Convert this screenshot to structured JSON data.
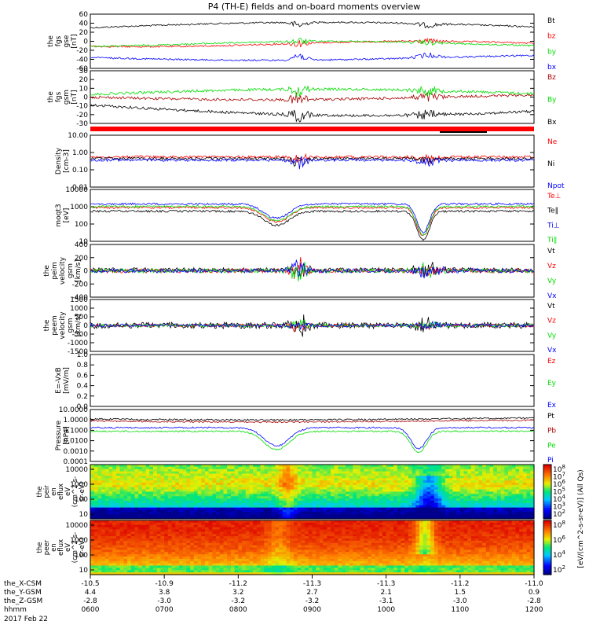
{
  "title": "P4 (TH-E) fields and on-board moments overview",
  "date_label": "2017 Feb 22",
  "colors": {
    "black": "#000000",
    "red": "#ff0000",
    "green": "#00dd00",
    "blue": "#0000ff",
    "darkred": "#aa0000"
  },
  "chart_data": [
    {
      "type": "line",
      "id": "fgs-gse",
      "ylabel": [
        "the",
        "fgs",
        "gse",
        "[nT]"
      ],
      "yticks": [
        "60",
        "40",
        "20",
        "0",
        "-20",
        "-40",
        "-60"
      ],
      "ylim": [
        -60,
        60
      ],
      "series": [
        {
          "name": "Bt",
          "color": "#000000"
        },
        {
          "name": "bz",
          "color": "#ff0000"
        },
        {
          "name": "by",
          "color": "#00dd00"
        },
        {
          "name": "bx",
          "color": "#0000ff"
        }
      ]
    },
    {
      "type": "line",
      "id": "fgs-gsm",
      "ylabel": [
        "the",
        "fgs",
        "gsm",
        "[nT]"
      ],
      "yticks": [
        "30",
        "20",
        "10",
        "0",
        "-10",
        "-20",
        "-30"
      ],
      "ylim": [
        -30,
        30
      ],
      "series": [
        {
          "name": "Bz",
          "color": "#aa0000"
        },
        {
          "name": "By",
          "color": "#00dd00"
        },
        {
          "name": "Bx",
          "color": "#000000"
        }
      ]
    },
    {
      "type": "line",
      "id": "density",
      "ylabel": [
        "Density",
        "[cm-3]"
      ],
      "yticks": [
        "10.00",
        "1.00",
        "0.10",
        "0.01"
      ],
      "log": true,
      "series": [
        {
          "name": "Ne",
          "color": "#ff0000"
        },
        {
          "name": "Ni",
          "color": "#000000"
        },
        {
          "name": "Npot",
          "color": "#0000ff"
        }
      ]
    },
    {
      "type": "line",
      "id": "temperature",
      "ylabel": [
        "moqt3",
        "[eV]"
      ],
      "yticks": [
        "10000",
        "1000",
        "100",
        "10"
      ],
      "log": true,
      "series": [
        {
          "name": "Te⊥",
          "color": "#ff0000"
        },
        {
          "name": "Te∥",
          "color": "#000000"
        },
        {
          "name": "Ti⊥",
          "color": "#0000ff"
        },
        {
          "name": "Ti∥",
          "color": "#00dd00"
        }
      ]
    },
    {
      "type": "line",
      "id": "peim-velocity",
      "ylabel": [
        "the",
        "peim",
        "velocity",
        "gsm",
        "[km/s]"
      ],
      "yticks": [
        "400",
        "200",
        "0",
        "-200",
        "-400"
      ],
      "ylim": [
        -400,
        400
      ],
      "series": [
        {
          "name": "Vt",
          "color": "#000000"
        },
        {
          "name": "Vz",
          "color": "#ff0000"
        },
        {
          "name": "Vy",
          "color": "#00dd00"
        },
        {
          "name": "Vx",
          "color": "#0000ff"
        }
      ]
    },
    {
      "type": "line",
      "id": "peem-velocity",
      "ylabel": [
        "the",
        "peem",
        "velocity",
        "gsm",
        "[km/s]"
      ],
      "yticks": [
        "1500",
        "1000",
        "500",
        "0",
        "-500",
        "-1000",
        "-1500"
      ],
      "ylim": [
        -1500,
        1500
      ],
      "series": [
        {
          "name": "Vt",
          "color": "#000000"
        },
        {
          "name": "Vz",
          "color": "#ff0000"
        },
        {
          "name": "Vy",
          "color": "#00dd00"
        },
        {
          "name": "Vx",
          "color": "#0000ff"
        }
      ]
    },
    {
      "type": "line",
      "id": "efield",
      "ylabel": [
        "E=-VxB",
        "[mV/m]"
      ],
      "yticks": [
        "1.0",
        "0.8",
        "0.6",
        "0.4",
        "0.2",
        "0.0"
      ],
      "ylim": [
        0,
        1
      ],
      "series": [
        {
          "name": "Ez",
          "color": "#ff0000"
        },
        {
          "name": "Ey",
          "color": "#00dd00"
        },
        {
          "name": "Ex",
          "color": "#0000ff"
        }
      ]
    },
    {
      "type": "line",
      "id": "pressure",
      "ylabel": [
        "Pressure",
        "[nPa]"
      ],
      "yticks": [
        "10.0000",
        "1.0000",
        "0.1000",
        "0.0100",
        "0.0010",
        "0.0001"
      ],
      "log": true,
      "series": [
        {
          "name": "Pt",
          "color": "#000000"
        },
        {
          "name": "Pb",
          "color": "#aa0000"
        },
        {
          "name": "Pe",
          "color": "#00dd00"
        },
        {
          "name": "Pi",
          "color": "#0000ff"
        }
      ]
    },
    {
      "type": "heatmap",
      "id": "peir",
      "ylabel": [
        "the",
        "peir",
        "en",
        "eflux",
        "eV",
        "(cm^2-s-",
        "sr-eV)"
      ],
      "yticks": [
        "10000",
        "1000",
        "100",
        "10"
      ],
      "log": true
    },
    {
      "type": "heatmap",
      "id": "peer",
      "ylabel": [
        "the",
        "peer",
        "en",
        "eflux",
        "eV",
        "(cm^2-s-",
        "sr-eV)"
      ],
      "yticks": [
        "10000",
        "1000",
        "100",
        "10"
      ],
      "log": true
    }
  ],
  "colorbar": {
    "label": "[eV/(cm^2-s-sr-eV)] (All Qs)",
    "ticks_top": [
      "10^8",
      "10^7",
      "10^6",
      "10^5",
      "10^4",
      "10^3",
      "10^2"
    ],
    "ticks_bottom": [
      "10^8",
      "10^6",
      "10^4",
      "10^2"
    ]
  },
  "xaxis": {
    "rows": [
      {
        "label": "the_X-CSM",
        "values": [
          "-10.5",
          "-10.9",
          "-11.2",
          "-11.3",
          "-11.3",
          "-11.2",
          "-11.0"
        ]
      },
      {
        "label": "the_Y-GSM",
        "values": [
          "4.4",
          "3.8",
          "3.2",
          "2.7",
          "2.1",
          "1.5",
          "0.9"
        ]
      },
      {
        "label": "the_Z-GSM",
        "values": [
          "-2.8",
          "-3.0",
          "-3.2",
          "-3.2",
          "-3.1",
          "-3.0",
          "-2.8"
        ]
      },
      {
        "label": "hhmm",
        "values": [
          "0600",
          "0700",
          "0800",
          "0900",
          "1000",
          "1100",
          "1200"
        ]
      }
    ]
  }
}
